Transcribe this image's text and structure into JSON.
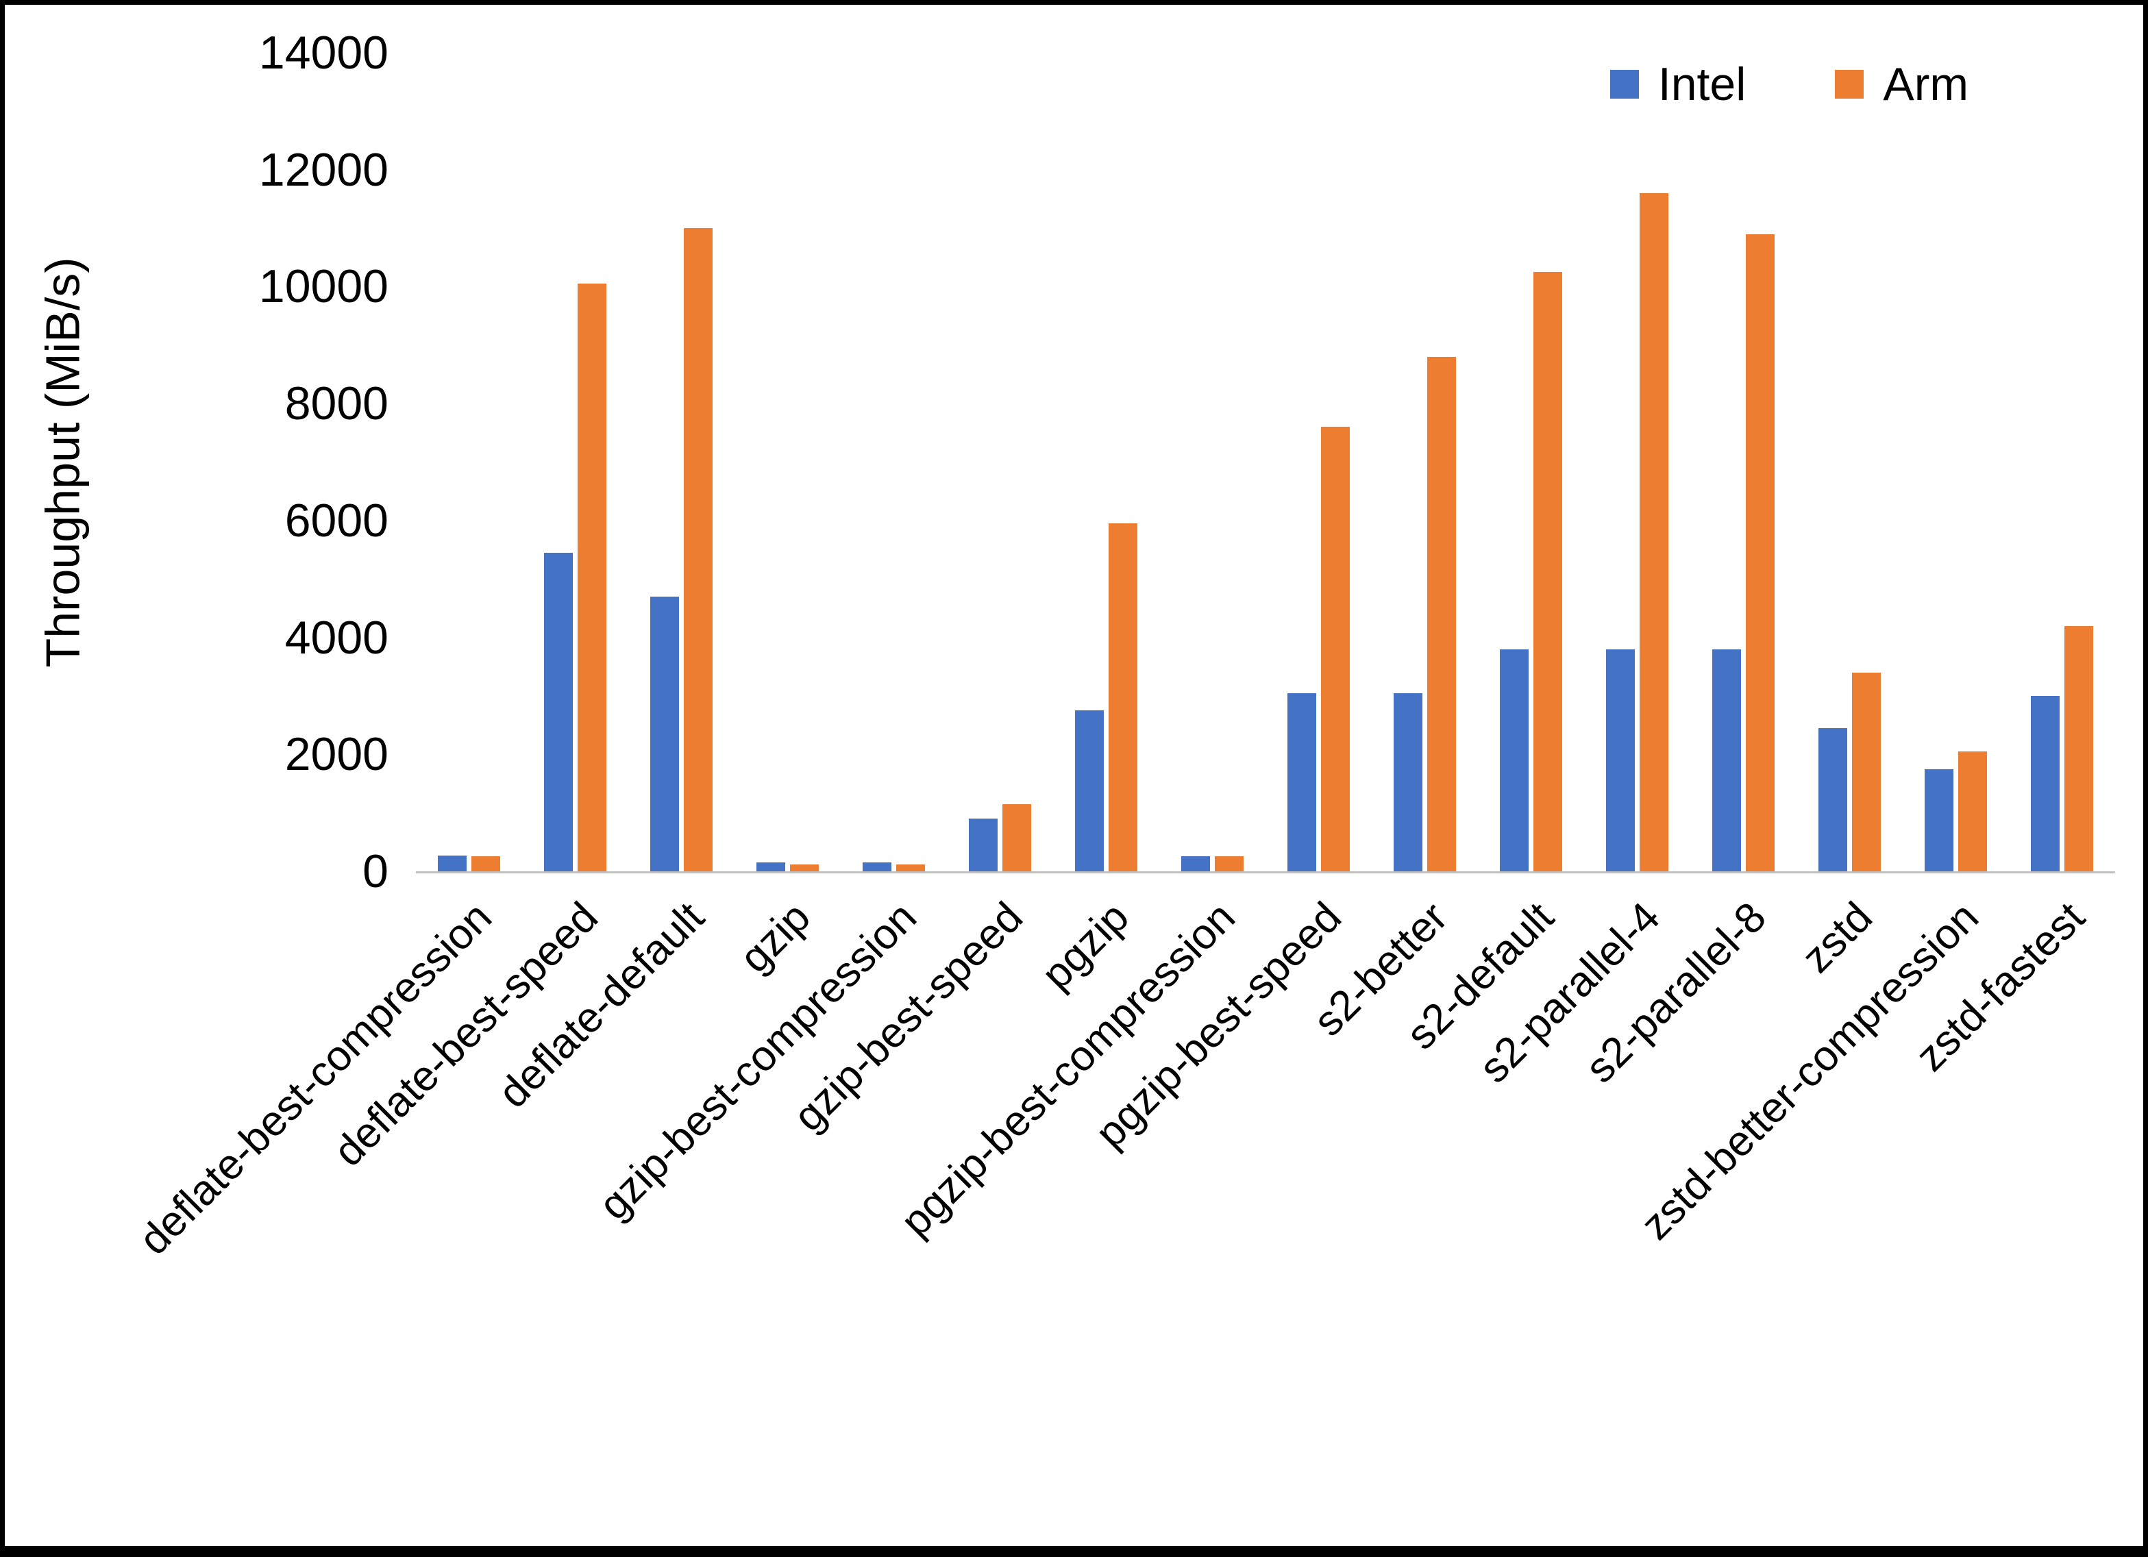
{
  "chart_data": {
    "type": "bar",
    "title": "",
    "xlabel": "",
    "ylabel": "Throughput (MiB/s)",
    "ylim": [
      0,
      14000
    ],
    "yticks": [
      0,
      2000,
      4000,
      6000,
      8000,
      10000,
      12000,
      14000
    ],
    "grid": false,
    "legend_position": "top-right",
    "categories": [
      "deflate-best-compression",
      "deflate-best-speed",
      "deflate-default",
      "gzip",
      "gzip-best-compression",
      "gzip-best-speed",
      "pgzip",
      "pgzip-best-compression",
      "pgzip-best-speed",
      "s2-better",
      "s2-default",
      "s2-parallel-4",
      "s2-parallel-8",
      "zstd",
      "zstd-better-compression",
      "zstd-fastest"
    ],
    "series": [
      {
        "name": "Intel",
        "color": "#4472C4",
        "values": [
          270,
          5450,
          4700,
          150,
          150,
          900,
          2750,
          260,
          3050,
          3050,
          3800,
          3800,
          3800,
          2450,
          1750,
          3000
        ]
      },
      {
        "name": "Arm",
        "color": "#ED7D31",
        "values": [
          260,
          10050,
          11000,
          120,
          120,
          1150,
          5950,
          260,
          7600,
          8800,
          10250,
          11600,
          10900,
          3400,
          2050,
          4200
        ]
      }
    ]
  }
}
